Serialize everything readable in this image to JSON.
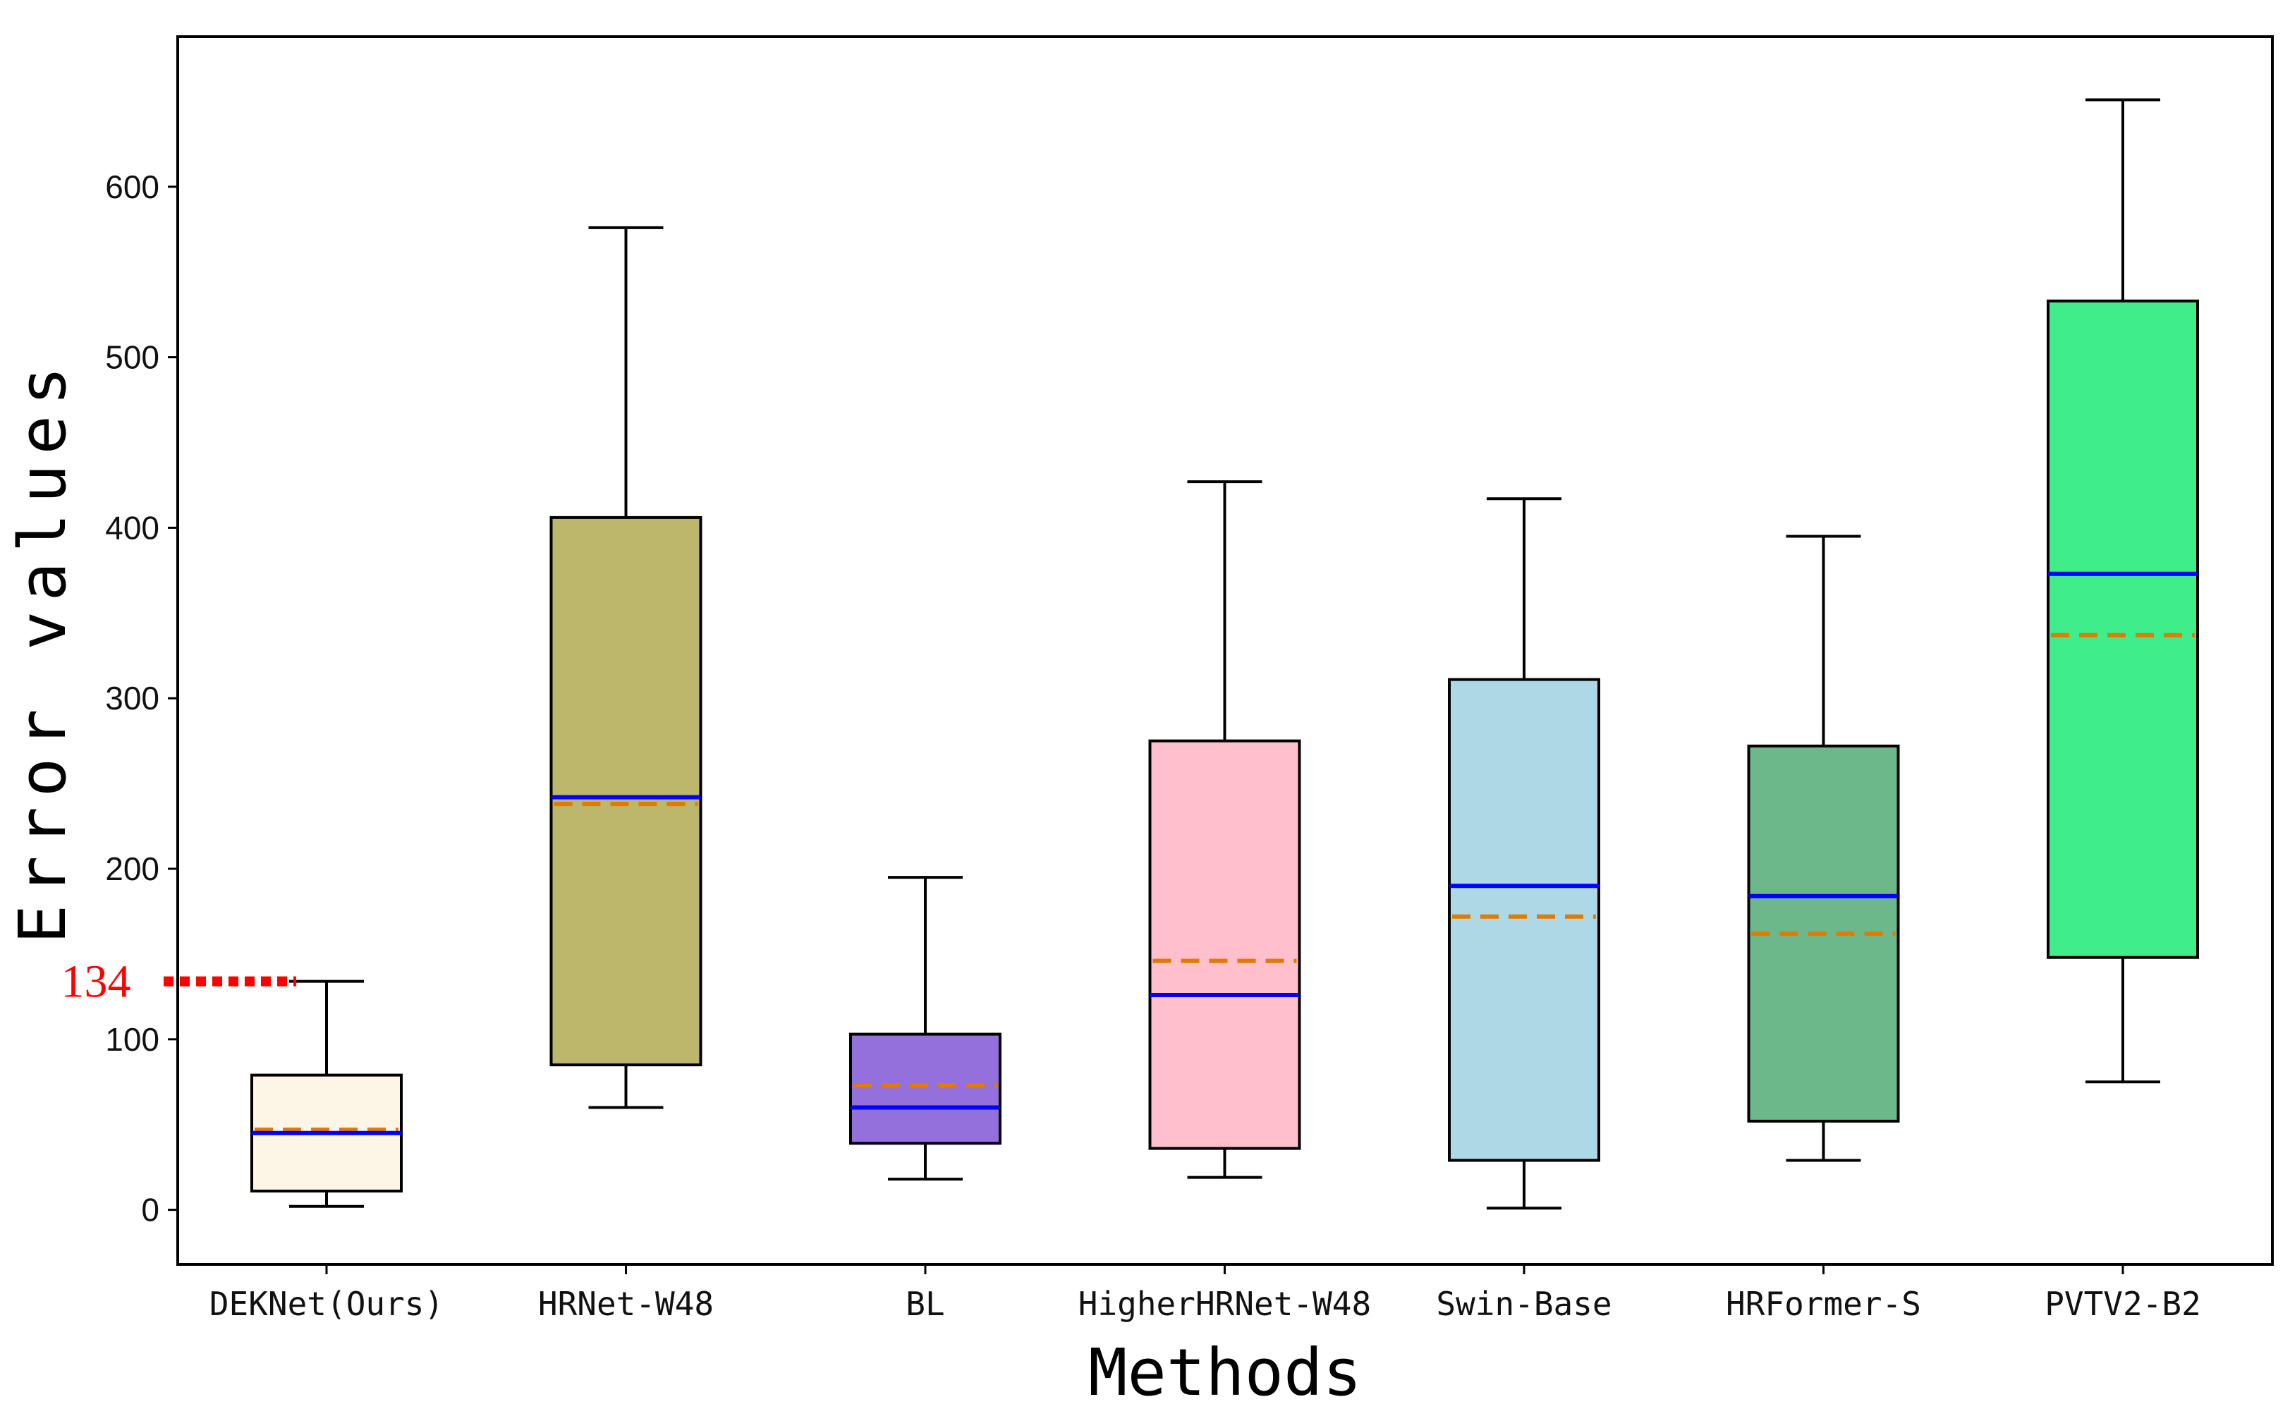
{
  "chart_data": {
    "type": "box",
    "title": "",
    "xlabel": "Methods",
    "ylabel": "Error values",
    "ylim": [
      -32,
      688
    ],
    "yticks": [
      0,
      100,
      200,
      300,
      400,
      500,
      600
    ],
    "grid": false,
    "legend": "none",
    "categories": [
      "DEKNet(Ours)",
      "HRNet-W48",
      "BL",
      "HigherHRNet-W48",
      "Swin-Base",
      "HRFormer-S",
      "PVTV2-B2"
    ],
    "boxes": [
      {
        "name": "DEKNet(Ours)",
        "whisker_low": 2,
        "q1": 11,
        "median": 45,
        "mean": 47,
        "q3": 79,
        "whisker_high": 134,
        "color": "#fdf5e6"
      },
      {
        "name": "HRNet-W48",
        "whisker_low": 60,
        "q1": 85,
        "median": 242,
        "mean": 238,
        "q3": 406,
        "whisker_high": 576,
        "color": "#bdb76b"
      },
      {
        "name": "BL",
        "whisker_low": 18,
        "q1": 39,
        "median": 60,
        "mean": 73,
        "q3": 103,
        "whisker_high": 195,
        "color": "#9370db"
      },
      {
        "name": "HigherHRNet-W48",
        "whisker_low": 19,
        "q1": 36,
        "median": 126,
        "mean": 146,
        "q3": 275,
        "whisker_high": 427,
        "color": "#ffc0cb"
      },
      {
        "name": "Swin-Base",
        "whisker_low": 1,
        "q1": 29,
        "median": 190,
        "mean": 172,
        "q3": 311,
        "whisker_high": 417,
        "color": "#add8e6"
      },
      {
        "name": "HRFormer-S",
        "whisker_low": 29,
        "q1": 52,
        "median": 184,
        "mean": 162,
        "q3": 272,
        "whisker_high": 395,
        "color": "#6db88a"
      },
      {
        "name": "PVTV2-B2",
        "whisker_low": 75,
        "q1": 148,
        "median": 373,
        "mean": 337,
        "q3": 533,
        "whisker_high": 651,
        "color": "#40ed8b"
      }
    ],
    "median_color": "#0000ff",
    "mean_color": "#e07b00",
    "annotation": {
      "label": "134",
      "value": 134,
      "color": "#ff0000"
    }
  }
}
